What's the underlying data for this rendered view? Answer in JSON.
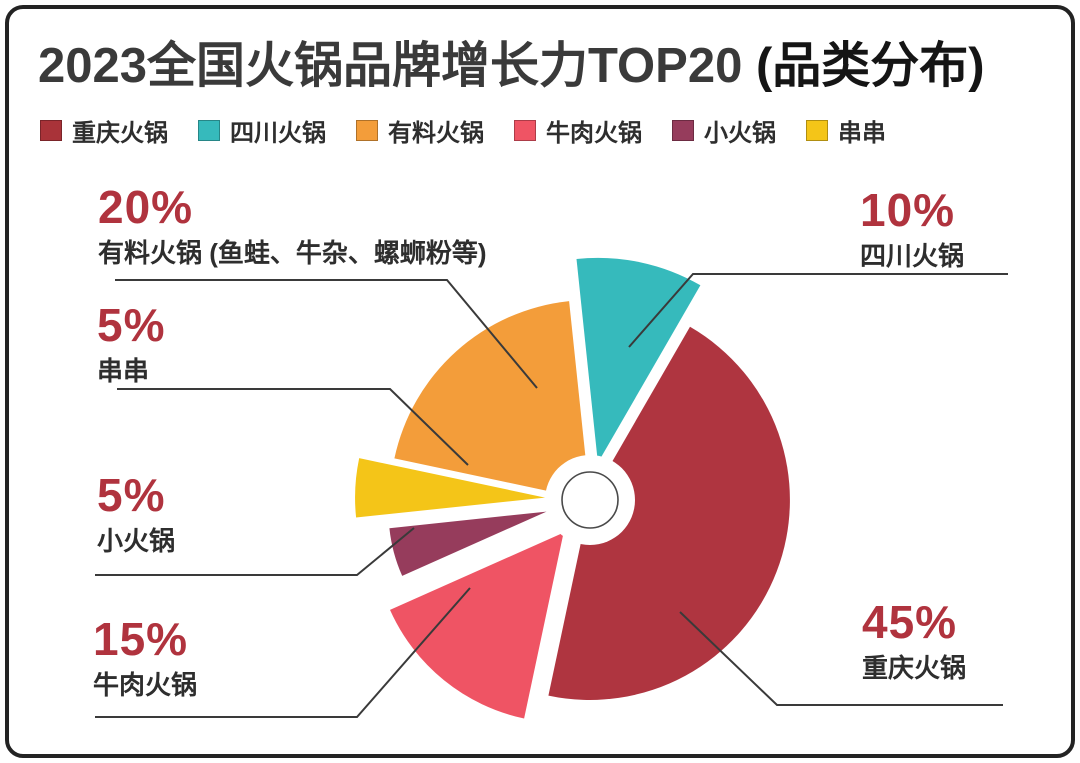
{
  "header": {
    "title_main": "2023全国火锅品牌增长力TOP20",
    "title_suffix": " (品类分布)"
  },
  "legend": {
    "items": [
      {
        "label": "重庆火锅",
        "color": "#A93339"
      },
      {
        "label": "四川火锅",
        "color": "#36BABC"
      },
      {
        "label": "有料火锅",
        "color": "#F39D3A"
      },
      {
        "label": "牛肉火锅",
        "color": "#EF5464"
      },
      {
        "label": "小火锅",
        "color": "#963C5C"
      },
      {
        "label": "串串",
        "color": "#F4C518"
      }
    ]
  },
  "callouts": {
    "youliao": {
      "pct": "20%",
      "label": "有料火锅 (鱼蛙、牛杂、螺蛳粉等)"
    },
    "sichuan": {
      "pct": "10%",
      "label": "四川火锅"
    },
    "chuanchuan": {
      "pct": "5%",
      "label": "串串"
    },
    "xiaohuoguo": {
      "pct": "5%",
      "label": "小火锅"
    },
    "niurou": {
      "pct": "15%",
      "label": "牛肉火锅"
    },
    "chongqing": {
      "pct": "45%",
      "label": "重庆火锅"
    }
  },
  "colors": {
    "accent_red": "#B0333E",
    "text_dark": "#2e2e2e",
    "line": "#3a3a3a"
  },
  "chart_data": {
    "type": "pie",
    "title": "2023全国火锅品牌增长力TOP20 (品类分布)",
    "unit": "%",
    "legend_position": "top",
    "start_angle_deg": -6,
    "slices": [
      {
        "name": "四川火锅",
        "value": 10,
        "color": "#36BABC",
        "explode": 38,
        "radius": 205
      },
      {
        "name": "重庆火锅",
        "value": 45,
        "color": "#AF3540",
        "explode": 0,
        "radius": 200
      },
      {
        "name": "牛肉火锅",
        "value": 15,
        "color": "#EF5464",
        "explode": 42,
        "radius": 190
      },
      {
        "name": "小火锅",
        "value": 5,
        "color": "#963C5C",
        "explode": 45,
        "radius": 158
      },
      {
        "name": "串串",
        "value": 5,
        "color": "#F4C518",
        "explode": 45,
        "radius": 190
      },
      {
        "name": "有料火锅",
        "value": 20,
        "color": "#F39D3A",
        "explode": 0,
        "radius": 200
      }
    ]
  }
}
